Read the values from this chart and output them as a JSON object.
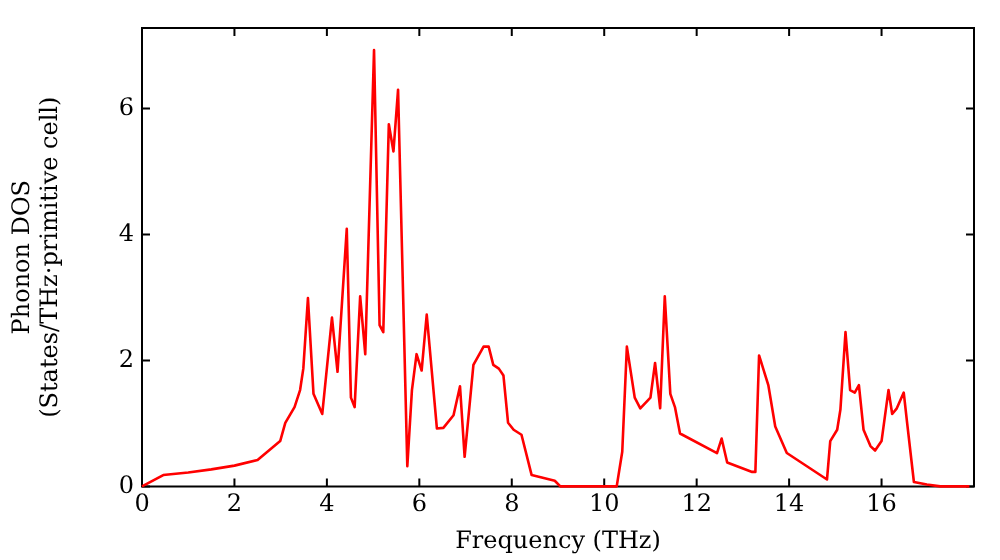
{
  "chart_data": {
    "type": "line",
    "xlabel": "Frequency (THz)",
    "ylabel": "Phonon DOS\n(States/THz·primitive cell)",
    "xlim": [
      0,
      18
    ],
    "xticks": [
      0,
      2,
      4,
      6,
      8,
      10,
      12,
      14,
      16
    ],
    "ylim": [
      0,
      7.28
    ],
    "yticks": [
      0,
      2,
      4,
      6
    ],
    "grid": false,
    "legend": false,
    "marker": "none",
    "line_style": "solid",
    "series": [
      {
        "color": "#ff0000",
        "x": [
          0,
          0.46,
          1,
          1.5,
          2,
          2.5,
          2.99,
          3.1,
          3.3,
          3.42,
          3.49,
          3.59,
          3.71,
          3.9,
          4.11,
          4.23,
          4.43,
          4.52,
          4.6,
          4.72,
          4.83,
          5.02,
          5.14,
          5.22,
          5.34,
          5.44,
          5.54,
          5.74,
          5.84,
          5.94,
          6.05,
          6.16,
          6.38,
          6.52,
          6.74,
          6.88,
          6.98,
          7.17,
          7.39,
          7.5,
          7.6,
          7.72,
          7.82,
          7.92,
          8.04,
          8.21,
          8.43,
          8.93,
          9.05,
          10.27,
          10.39,
          10.49,
          10.66,
          10.78,
          11,
          11.1,
          11.21,
          11.31,
          11.43,
          11.53,
          11.64,
          12.44,
          12.54,
          12.66,
          13.2,
          13.27,
          13.35,
          13.55,
          13.7,
          13.95,
          14.82,
          14.89,
          15.04,
          15.11,
          15.22,
          15.32,
          15.42,
          15.51,
          15.61,
          15.76,
          15.86,
          16,
          16.15,
          16.23,
          16.33,
          16.48,
          16.55,
          16.7,
          16.98,
          17.27,
          17.9
        ],
        "values": [
          0,
          0.18,
          0.22,
          0.27,
          0.33,
          0.42,
          0.72,
          1.01,
          1.26,
          1.53,
          1.87,
          2.99,
          1.47,
          1.15,
          2.68,
          1.82,
          4.09,
          1.41,
          1.26,
          3.02,
          2.1,
          6.93,
          2.56,
          2.45,
          5.75,
          5.32,
          6.3,
          0.32,
          1.53,
          2.1,
          1.84,
          2.73,
          0.92,
          0.93,
          1.13,
          1.59,
          0.47,
          1.93,
          2.22,
          2.22,
          1.93,
          1.87,
          1.76,
          1.01,
          0.9,
          0.82,
          0.18,
          0.09,
          0,
          0,
          0.55,
          2.22,
          1.41,
          1.24,
          1.41,
          1.96,
          1.24,
          3.02,
          1.47,
          1.26,
          0.84,
          0.53,
          0.76,
          0.38,
          0.23,
          0.23,
          2.08,
          1.61,
          0.95,
          0.53,
          0.11,
          0.72,
          0.9,
          1.22,
          2.45,
          1.53,
          1.49,
          1.61,
          0.9,
          0.64,
          0.57,
          0.72,
          1.53,
          1.15,
          1.24,
          1.49,
          1.03,
          0.07,
          0.03,
          0,
          0
        ]
      }
    ]
  }
}
